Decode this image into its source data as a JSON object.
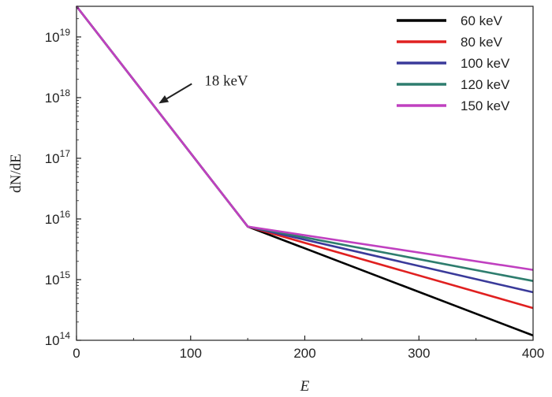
{
  "chart_data": {
    "type": "line",
    "xlabel": "E",
    "ylabel": "dN/dE",
    "xlim": [
      0,
      400
    ],
    "ylim": [
      100000000000000.0,
      3.2e+19
    ],
    "yscale": "log",
    "grid": false,
    "legend_position": "top-right",
    "x_ticks": [
      "0",
      "100",
      "200",
      "300",
      "400"
    ],
    "y_ticks": [
      {
        "base": "10",
        "exp": "14",
        "value": 100000000000000.0
      },
      {
        "base": "10",
        "exp": "15",
        "value": 1000000000000000.0
      },
      {
        "base": "10",
        "exp": "16",
        "value": 1e+16
      },
      {
        "base": "10",
        "exp": "17",
        "value": 1e+17
      },
      {
        "base": "10",
        "exp": "18",
        "value": 1e+18
      },
      {
        "base": "10",
        "exp": "19",
        "value": 1e+19
      }
    ],
    "annotation": {
      "text": "18 keV",
      "arrow_to": {
        "x": 72,
        "y": 8e+17
      }
    },
    "series": [
      {
        "name": "60 keV",
        "color": "#000000",
        "x": [
          0,
          150,
          400
        ],
        "y": [
          3.2e+19,
          7500000000000000.0,
          120000000000000.0
        ]
      },
      {
        "name": "80 keV",
        "color": "#e02020",
        "x": [
          0,
          150,
          400
        ],
        "y": [
          3.2e+19,
          7500000000000000.0,
          340000000000000.0
        ]
      },
      {
        "name": "100 keV",
        "color": "#3a3a9a",
        "x": [
          0,
          150,
          400
        ],
        "y": [
          3.2e+19,
          7500000000000000.0,
          620000000000000.0
        ]
      },
      {
        "name": "120 keV",
        "color": "#2e7d6e",
        "x": [
          0,
          150,
          400
        ],
        "y": [
          3.2e+19,
          7500000000000000.0,
          950000000000000.0
        ]
      },
      {
        "name": "150 keV",
        "color": "#c040c0",
        "x": [
          0,
          150,
          400
        ],
        "y": [
          3.2e+19,
          7500000000000000.0,
          1450000000000000.0
        ]
      }
    ]
  }
}
